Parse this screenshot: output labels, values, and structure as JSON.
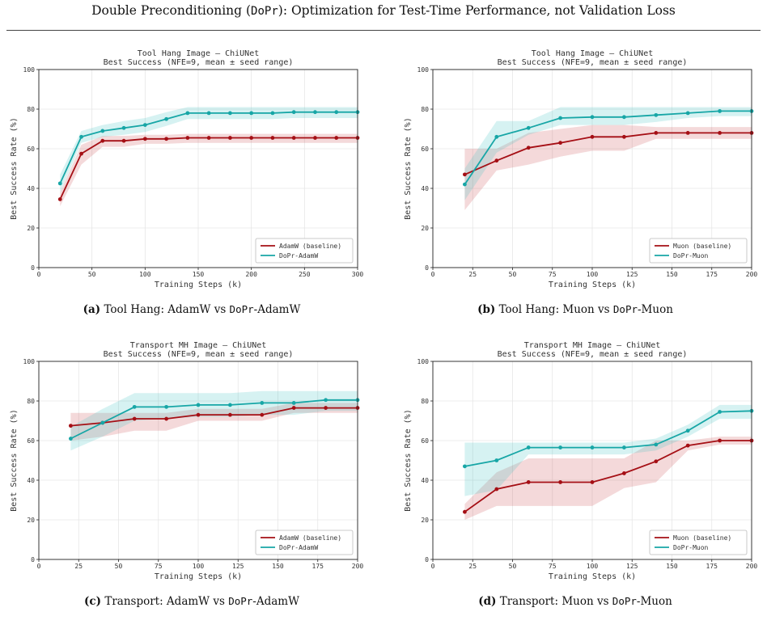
{
  "header": {
    "title_prefix": "Double Preconditioning (",
    "title_mono": "DoPr",
    "title_suffix": "): Optimization for Test-Time Performance, not Validation Loss"
  },
  "colors": {
    "baseline": "#a50f15",
    "dopr": "#17a6a6",
    "baseline_band": "rgba(205,80,85,0.22)",
    "dopr_band": "rgba(70,195,195,0.22)"
  },
  "captions": [
    {
      "label": "(a)",
      "pre": "Tool Hang: AdamW vs ",
      "mono": "DoPr",
      "post": "-AdamW"
    },
    {
      "label": "(b)",
      "pre": "Tool Hang: Muon vs ",
      "mono": "DoPr",
      "post": "-Muon"
    },
    {
      "label": "(c)",
      "pre": "Transport: AdamW vs ",
      "mono": "DoPr",
      "post": "-AdamW"
    },
    {
      "label": "(d)",
      "pre": "Transport: Muon vs ",
      "mono": "DoPr",
      "post": "-Muon"
    }
  ],
  "chart_data": [
    {
      "type": "line",
      "title": "Tool Hang Image — ChiUNet",
      "subtitle": "Best Success (NFE=9, mean ± seed range)",
      "xlabel": "Training Steps (k)",
      "ylabel": "Best Success Rate (%)",
      "xlim": [
        0,
        300
      ],
      "ylim": [
        0,
        100
      ],
      "xticks": [
        0,
        50,
        100,
        150,
        200,
        250,
        300
      ],
      "yticks": [
        0,
        20,
        40,
        60,
        80,
        100
      ],
      "grid": true,
      "legend_position": "lower-right",
      "series": [
        {
          "name": "AdamW (baseline)",
          "role": "baseline",
          "x": [
            20,
            40,
            60,
            80,
            100,
            120,
            140,
            160,
            180,
            200,
            220,
            240,
            260,
            280,
            300
          ],
          "y": [
            34.5,
            57.5,
            64,
            64,
            65,
            65,
            65.5,
            65.5,
            65.5,
            65.5,
            65.5,
            65.5,
            65.5,
            65.5,
            65.5
          ],
          "lower": [
            31,
            52,
            61,
            61,
            62.5,
            62.5,
            63,
            63,
            63,
            63,
            63,
            63,
            63,
            63,
            63
          ],
          "upper": [
            38,
            62,
            66.5,
            66.5,
            67,
            67,
            67.5,
            67.5,
            67.5,
            67.5,
            67.5,
            67.5,
            67.5,
            67.5,
            67.5
          ]
        },
        {
          "name": "DoPr-AdamW",
          "role": "dopr",
          "x": [
            20,
            40,
            60,
            80,
            100,
            120,
            140,
            160,
            180,
            200,
            220,
            240,
            260,
            280,
            300
          ],
          "y": [
            42.5,
            66,
            69,
            70.5,
            72,
            75,
            78,
            78,
            78,
            78,
            78,
            78.5,
            78.5,
            78.5,
            78.5
          ],
          "lower": [
            38,
            63,
            66,
            67,
            68.5,
            71.5,
            75,
            75,
            75,
            75,
            75,
            75.5,
            75.5,
            75.5,
            75.5
          ],
          "upper": [
            47,
            69,
            72,
            74,
            75.5,
            78.5,
            81,
            81,
            81,
            81,
            81,
            81,
            81,
            81,
            81
          ]
        }
      ]
    },
    {
      "type": "line",
      "title": "Tool Hang Image — ChiUNet",
      "subtitle": "Best Success (NFE=9, mean ± seed range)",
      "xlabel": "Training Steps (k)",
      "ylabel": "Best Success Rate (%)",
      "xlim": [
        0,
        200
      ],
      "ylim": [
        0,
        100
      ],
      "xticks": [
        0,
        25,
        50,
        75,
        100,
        125,
        150,
        175,
        200
      ],
      "yticks": [
        0,
        20,
        40,
        60,
        80,
        100
      ],
      "grid": true,
      "legend_position": "lower-right",
      "series": [
        {
          "name": "Muon (baseline)",
          "role": "baseline",
          "x": [
            20,
            40,
            60,
            80,
            100,
            120,
            140,
            160,
            180,
            200
          ],
          "y": [
            47,
            54,
            60.5,
            63,
            66,
            66,
            68,
            68,
            68,
            68
          ],
          "lower": [
            29,
            49,
            52,
            56,
            59,
            59,
            65,
            65,
            65,
            65
          ],
          "upper": [
            60,
            60,
            68,
            70,
            72,
            72,
            71,
            71,
            71,
            71
          ]
        },
        {
          "name": "DoPr-Muon",
          "role": "dopr",
          "x": [
            20,
            40,
            60,
            80,
            100,
            120,
            140,
            160,
            180,
            200
          ],
          "y": [
            42,
            66,
            70.5,
            75.5,
            76,
            76,
            77,
            78,
            79,
            79
          ],
          "lower": [
            34,
            58,
            67,
            72,
            72,
            72,
            73.5,
            75.5,
            76.5,
            76.5
          ],
          "upper": [
            50,
            74,
            74,
            81,
            81,
            81,
            81,
            81,
            81,
            81
          ]
        }
      ]
    },
    {
      "type": "line",
      "title": "Transport MH Image — ChiUNet",
      "subtitle": "Best Success (NFE=9, mean ± seed range)",
      "xlabel": "Training Steps (k)",
      "ylabel": "Best Success Rate (%)",
      "xlim": [
        0,
        200
      ],
      "ylim": [
        0,
        100
      ],
      "xticks": [
        0,
        25,
        50,
        75,
        100,
        125,
        150,
        175,
        200
      ],
      "yticks": [
        0,
        20,
        40,
        60,
        80,
        100
      ],
      "grid": true,
      "legend_position": "lower-right",
      "series": [
        {
          "name": "AdamW (baseline)",
          "role": "baseline",
          "x": [
            20,
            40,
            60,
            80,
            100,
            120,
            140,
            160,
            180,
            200
          ],
          "y": [
            67.5,
            69,
            71,
            71,
            73,
            73,
            73,
            76.5,
            76.5,
            76.5
          ],
          "lower": [
            60,
            62,
            65,
            65,
            70,
            70,
            70,
            74,
            74,
            74
          ],
          "upper": [
            74,
            74,
            74,
            74,
            76,
            76,
            76,
            79,
            79,
            79
          ]
        },
        {
          "name": "DoPr-AdamW",
          "role": "dopr",
          "x": [
            20,
            40,
            60,
            80,
            100,
            120,
            140,
            160,
            180,
            200
          ],
          "y": [
            61,
            69,
            77,
            77,
            78,
            78,
            79,
            79,
            80.5,
            80.5
          ],
          "lower": [
            55,
            62,
            70,
            71,
            72,
            72,
            73,
            73,
            75,
            75
          ],
          "upper": [
            67,
            76,
            84,
            84,
            84,
            84,
            85,
            85,
            85,
            85
          ]
        }
      ]
    },
    {
      "type": "line",
      "title": "Transport MH Image — ChiUNet",
      "subtitle": "Best Success (NFE=9, mean ± seed range)",
      "xlabel": "Training Steps (k)",
      "ylabel": "Best Success Rate (%)",
      "xlim": [
        0,
        200
      ],
      "ylim": [
        0,
        100
      ],
      "xticks": [
        0,
        25,
        50,
        75,
        100,
        125,
        150,
        175,
        200
      ],
      "yticks": [
        0,
        20,
        40,
        60,
        80,
        100
      ],
      "grid": true,
      "legend_position": "lower-right",
      "series": [
        {
          "name": "Muon (baseline)",
          "role": "baseline",
          "x": [
            20,
            40,
            60,
            80,
            100,
            120,
            140,
            160,
            180,
            200
          ],
          "y": [
            24,
            35.5,
            39,
            39,
            39,
            43.5,
            49.5,
            57.5,
            60,
            60
          ],
          "lower": [
            20,
            27,
            27,
            27,
            27,
            36,
            39,
            55,
            58,
            58
          ],
          "upper": [
            28,
            44,
            51,
            51,
            51,
            51,
            60,
            60,
            62,
            62
          ]
        },
        {
          "name": "DoPr-Muon",
          "role": "dopr",
          "x": [
            20,
            40,
            60,
            80,
            100,
            120,
            140,
            160,
            180,
            200
          ],
          "y": [
            47,
            50,
            56.5,
            56.5,
            56.5,
            56.5,
            58,
            65,
            74.5,
            75
          ],
          "lower": [
            32,
            35,
            53,
            53,
            53,
            53,
            55,
            62,
            71,
            71
          ],
          "upper": [
            59,
            59,
            59,
            59,
            59,
            59,
            61,
            68,
            78,
            78
          ]
        }
      ]
    }
  ]
}
